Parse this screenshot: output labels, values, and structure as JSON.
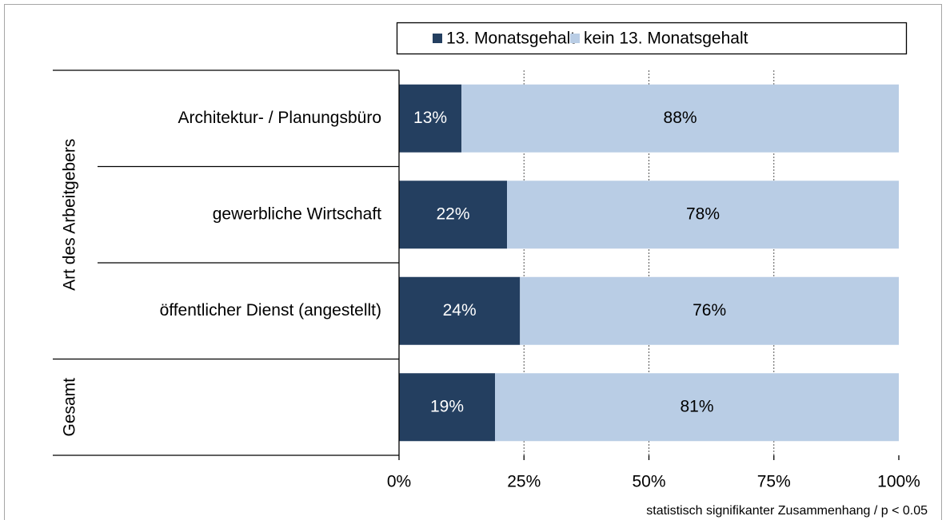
{
  "chart_data": {
    "type": "bar",
    "orientation": "horizontal",
    "stacked": true,
    "categories": [
      "Architektur- / Planungsbüro",
      "gewerbliche Wirtschaft",
      "öffentlicher Dienst (angestellt)",
      null
    ],
    "category_groups": [
      "Art des Arbeitgebers",
      "Art des Arbeitgebers",
      "Art des Arbeitgebers",
      "Gesamt"
    ],
    "series": [
      {
        "name": "13. Monatsgehalt",
        "color": "#243f60",
        "label_color": "#ffffff",
        "values": [
          12.5,
          21.6,
          24.2,
          19.2
        ],
        "value_labels": [
          "13%",
          "22%",
          "24%",
          "19%"
        ]
      },
      {
        "name": "kein 13. Monatsgehalt",
        "color": "#b9cde5",
        "label_color": "#000000",
        "values": [
          87.5,
          78.4,
          75.8,
          80.8
        ],
        "value_labels": [
          "88%",
          "78%",
          "76%",
          "81%"
        ]
      }
    ],
    "xlim": [
      0,
      100
    ],
    "xticks": [
      {
        "value": 0,
        "label": "0%"
      },
      {
        "value": 25,
        "label": "25%"
      },
      {
        "value": 50,
        "label": "50%"
      },
      {
        "value": 75,
        "label": "75%"
      },
      {
        "value": 100,
        "label": "100%"
      }
    ],
    "grid": true,
    "legend_position": "top",
    "footnote": "statistisch signifikanter Zusammenhang / p < 0.05"
  }
}
